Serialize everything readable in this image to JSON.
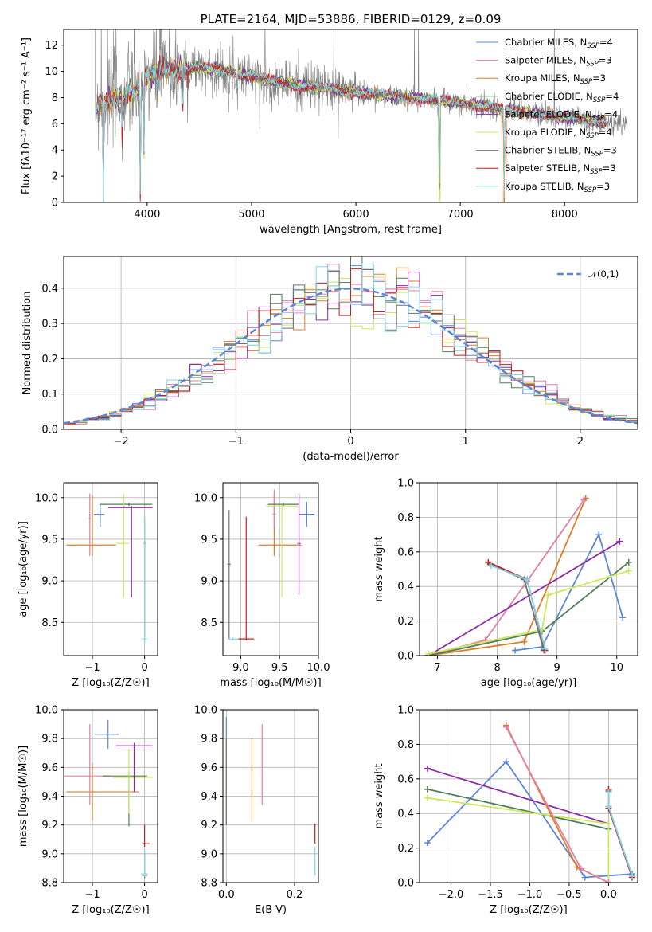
{
  "colors": {
    "Chabrier MILES": "#5b86d6",
    "Salpeter MILES": "#e57fa6",
    "Kroupa MILES": "#e07b28",
    "Chabrier ELODIE": "#4f7f58",
    "Salpeter ELODIE": "#8e2aa8",
    "Kroupa ELODIE": "#cde85a",
    "Chabrier STELIB": "#707070",
    "Salpeter STELIB": "#c81e1e",
    "Kroupa STELIB": "#7fd8e8"
  },
  "chart_data": [
    {
      "type": "line",
      "id": "spectrum",
      "title": "PLATE=2164, MJD=53886, FIBERID=0129, z=0.09",
      "xlabel": "wavelength [Angstrom, rest frame]",
      "ylabel": "Flux [fλ10⁻¹⁷ erg cm⁻² s⁻¹ A⁻¹]",
      "xlim": [
        3200,
        8700
      ],
      "ylim": [
        0,
        13.2
      ],
      "xticks": [
        4000,
        5000,
        6000,
        7000,
        8000
      ],
      "yticks": [
        0,
        2,
        4,
        6,
        8,
        10,
        12
      ],
      "grid": false,
      "legend_position": "top-right",
      "legend": [
        {
          "label": "Chabrier MILES, N",
          "sub": "SSP",
          "tail": "=4",
          "series": "Chabrier MILES"
        },
        {
          "label": "Salpeter MILES, N",
          "sub": "SSP",
          "tail": "=3",
          "series": "Salpeter MILES"
        },
        {
          "label": "Kroupa MILES, N",
          "sub": "SSP",
          "tail": "=3",
          "series": "Kroupa MILES"
        },
        {
          "label": "Chabrier ELODIE, N",
          "sub": "SSP",
          "tail": "=4",
          "series": "Chabrier ELODIE"
        },
        {
          "label": "Salpeter ELODIE, N",
          "sub": "SSP",
          "tail": "=4",
          "series": "Salpeter ELODIE"
        },
        {
          "label": "Kroupa ELODIE, N",
          "sub": "SSP",
          "tail": "=4",
          "series": "Kroupa ELODIE"
        },
        {
          "label": "Chabrier STELIB, N",
          "sub": "SSP",
          "tail": "=3",
          "series": "Chabrier STELIB"
        },
        {
          "label": "Salpeter STELIB, N",
          "sub": "SSP",
          "tail": "=3",
          "series": "Salpeter STELIB"
        },
        {
          "label": "Kroupa STELIB, N",
          "sub": "SSP",
          "tail": "=3",
          "series": "Kroupa STELIB"
        }
      ],
      "data_series": {
        "name": "data",
        "color": "#808080",
        "x_range": [
          3500,
          8600
        ]
      },
      "continuum": [
        [
          3500,
          7.6
        ],
        [
          3700,
          7.9
        ],
        [
          3850,
          8.4
        ],
        [
          4000,
          9.5
        ],
        [
          4150,
          10.2
        ],
        [
          4300,
          10.0
        ],
        [
          4500,
          10.3
        ],
        [
          4800,
          10.0
        ],
        [
          5000,
          9.6
        ],
        [
          5300,
          9.1
        ],
        [
          5600,
          8.8
        ],
        [
          6000,
          8.4
        ],
        [
          6500,
          8.0
        ],
        [
          7000,
          7.6
        ],
        [
          7500,
          7.0
        ],
        [
          8000,
          6.5
        ],
        [
          8500,
          6.0
        ]
      ],
      "absorption_features": [
        {
          "x": 3580,
          "flux": 0.1
        },
        {
          "x": 3760,
          "flux": 5.0
        },
        {
          "x": 3934,
          "flux": 0.1
        },
        {
          "x": 3969,
          "flux": 3.0
        },
        {
          "x": 4102,
          "flux": 6.5
        },
        {
          "x": 4340,
          "flux": 5.5
        },
        {
          "x": 4861,
          "flux": 7.0
        },
        {
          "x": 5175,
          "flux": 7.8
        },
        {
          "x": 6800,
          "flux": 0.1
        },
        {
          "x": 7420,
          "flux": 0.1
        }
      ],
      "data_emission_spikes": [
        3560,
        3620,
        3700,
        4120,
        5130,
        5790,
        6560,
        6600,
        7900
      ]
    },
    {
      "type": "area",
      "id": "residuals",
      "xlabel": "(data-model)/error",
      "ylabel": "Normed distribution",
      "xlim": [
        -2.5,
        2.5
      ],
      "ylim": [
        0,
        0.49
      ],
      "xticks": [
        -2,
        -1,
        0,
        1,
        2
      ],
      "yticks": [
        0.0,
        0.1,
        0.2,
        0.3,
        0.4
      ],
      "grid": true,
      "legend_position": "top-right",
      "reference": {
        "label": "𝒩(0,1)",
        "mean": 0,
        "sigma": 1,
        "color": "#5b86d6",
        "dashed": true
      },
      "bin_width": 0.1
    },
    {
      "type": "scatter",
      "id": "age-vs-Z",
      "xlabel": "Z [log₁₀(Z/Z☉)]",
      "ylabel": "age  [log₁₀(age/yr)]",
      "xlim": [
        -1.55,
        0.25
      ],
      "ylim": [
        8.1,
        10.18
      ],
      "xticks": [
        -1,
        0
      ],
      "yticks": [
        8.5,
        9.0,
        9.5,
        10.0
      ],
      "grid": true,
      "errorbars": [
        {
          "series": "Kroupa MILES",
          "x": -1.0,
          "xerr": [
            0.5,
            0.45
          ],
          "y": 9.43,
          "yerr": [
            0.13,
            0.6
          ]
        },
        {
          "series": "Salpeter MILES",
          "x": -1.05,
          "xerr": [
            0.02,
            0.02
          ],
          "y": 9.75,
          "yerr": [
            0.45,
            0.3
          ]
        },
        {
          "series": "Chabrier MILES",
          "x": -0.85,
          "xerr": [
            0.12,
            0.08
          ],
          "y": 9.8,
          "yerr": [
            0.15,
            0.12
          ]
        },
        {
          "series": "Chabrier ELODIE",
          "x": -0.3,
          "xerr": [
            0.55,
            0.45
          ],
          "y": 9.92,
          "yerr": [
            0.02,
            0.02
          ]
        },
        {
          "series": "Kroupa ELODIE",
          "x": -0.4,
          "xerr": [
            0.15,
            0.1
          ],
          "y": 9.45,
          "yerr": [
            0.65,
            0.6
          ]
        },
        {
          "series": "Salpeter ELODIE",
          "x": -0.25,
          "xerr": [
            0.45,
            0.4
          ],
          "y": 9.88,
          "yerr": [
            1.08,
            0.02
          ]
        },
        {
          "series": "Chabrier STELIB",
          "x": 0.0,
          "xerr": [
            0.02,
            0.02
          ],
          "y": 9.45,
          "yerr": [
            1.15,
            0.3
          ]
        },
        {
          "series": "Kroupa STELIB",
          "x": 0.0,
          "xerr": [
            0.05,
            0.05
          ],
          "y": 8.3,
          "yerr": [
            0.05,
            1.48
          ]
        }
      ]
    },
    {
      "type": "scatter",
      "id": "age-vs-mass",
      "xlabel": "mass [log₁₀(M/M☉)]",
      "ylabel": "",
      "xlim": [
        8.77,
        10.0
      ],
      "ylim": [
        8.1,
        10.18
      ],
      "xticks": [
        9.0,
        9.5,
        10.0
      ],
      "yticks": [
        8.5,
        9.0,
        9.5,
        10.0
      ],
      "grid": true,
      "errorbars": [
        {
          "series": "Kroupa MILES",
          "x": 9.43,
          "xerr": [
            0.2,
            0.35
          ],
          "y": 9.43,
          "yerr": [
            0.13,
            0.6
          ]
        },
        {
          "series": "Salpeter MILES",
          "x": 9.43,
          "xerr": [
            0.02,
            0.02
          ],
          "y": 9.8,
          "yerr": [
            0.15,
            0.3
          ]
        },
        {
          "series": "Chabrier MILES",
          "x": 9.85,
          "xerr": [
            0.1,
            0.1
          ],
          "y": 9.8,
          "yerr": [
            0.15,
            0.15
          ]
        },
        {
          "series": "Kroupa ELODIE",
          "x": 9.53,
          "xerr": [
            0.2,
            0.2
          ],
          "y": 9.9,
          "yerr": [
            1.1,
            0.02
          ]
        },
        {
          "series": "Chabrier ELODIE",
          "x": 9.55,
          "xerr": [
            0.2,
            0.2
          ],
          "y": 9.92,
          "yerr": [
            0.02,
            0.02
          ]
        },
        {
          "series": "Salpeter ELODIE",
          "x": 9.75,
          "xerr": [
            0.02,
            0.02
          ],
          "y": 9.45,
          "yerr": [
            0.62,
            0.6
          ]
        },
        {
          "series": "Chabrier STELIB",
          "x": 8.85,
          "xerr": [
            0.02,
            0.02
          ],
          "y": 9.2,
          "yerr": [
            0.9,
            0.65
          ]
        },
        {
          "series": "Salpeter STELIB",
          "x": 9.07,
          "xerr": [
            0.1,
            0.1
          ],
          "y": 8.3,
          "yerr": [
            0.02,
            1.47
          ]
        },
        {
          "series": "Kroupa STELIB",
          "x": 8.9,
          "xerr": [
            0.07,
            0.07
          ],
          "y": 8.3,
          "yerr": [
            0.02,
            0.02
          ]
        }
      ]
    },
    {
      "type": "line",
      "id": "mass-weight-vs-age",
      "xlabel": "age  [log₁₀(age/yr)]",
      "ylabel": "mass weight",
      "xlim": [
        6.7,
        10.35
      ],
      "ylim": [
        0,
        1.0
      ],
      "xticks": [
        7,
        8,
        9,
        10
      ],
      "yticks": [
        0.0,
        0.2,
        0.4,
        0.6,
        0.8,
        1.0
      ],
      "grid": true,
      "series": [
        {
          "name": "Kroupa MILES",
          "x": [
            6.85,
            8.45,
            9.48
          ],
          "y": [
            0.0,
            0.08,
            0.91
          ]
        },
        {
          "name": "Salpeter MILES",
          "x": [
            6.85,
            7.8,
            8.5,
            9.45
          ],
          "y": [
            0.0,
            0.09,
            0.43,
            0.9
          ]
        },
        {
          "name": "Chabrier MILES",
          "x": [
            8.3,
            8.75,
            9.7,
            10.1
          ],
          "y": [
            0.03,
            0.05,
            0.7,
            0.22
          ]
        },
        {
          "name": "Salpeter ELODIE",
          "x": [
            6.85,
            10.05
          ],
          "y": [
            0.0,
            0.66
          ]
        },
        {
          "name": "Chabrier ELODIE",
          "x": [
            6.85,
            8.75,
            10.2
          ],
          "y": [
            0.0,
            0.14,
            0.54
          ]
        },
        {
          "name": "Kroupa ELODIE",
          "x": [
            6.85,
            8.75,
            8.85,
            10.2
          ],
          "y": [
            0.01,
            0.15,
            0.35,
            0.49
          ]
        },
        {
          "name": "Chabrier STELIB",
          "x": [
            7.88,
            8.45,
            8.78
          ],
          "y": [
            0.53,
            0.44,
            0.03
          ]
        },
        {
          "name": "Salpeter STELIB",
          "x": [
            7.85,
            8.5,
            8.8
          ],
          "y": [
            0.54,
            0.44,
            0.03
          ]
        },
        {
          "name": "Kroupa STELIB",
          "x": [
            7.9,
            8.5,
            8.8
          ],
          "y": [
            0.52,
            0.44,
            0.04
          ]
        }
      ]
    },
    {
      "type": "scatter",
      "id": "mass-vs-Z",
      "xlabel": "Z [log₁₀(Z/Z☉)]",
      "ylabel": "mass [log₁₀(M/M☉)]",
      "xlim": [
        -1.55,
        0.25
      ],
      "ylim": [
        8.8,
        10.0
      ],
      "xticks": [
        -1,
        0
      ],
      "yticks": [
        8.8,
        9.0,
        9.2,
        9.4,
        9.6,
        9.8,
        10.0
      ],
      "grid": true,
      "errorbars": [
        {
          "series": "Kroupa MILES",
          "x": -1.0,
          "xerr": [
            0.5,
            0.9
          ],
          "y": 9.43,
          "yerr": [
            0.2,
            0.2
          ]
        },
        {
          "series": "Salpeter MILES",
          "x": -1.05,
          "xerr": [
            0.5,
            0.4
          ],
          "y": 9.54,
          "yerr": [
            0.2,
            0.36
          ]
        },
        {
          "series": "Chabrier MILES",
          "x": -0.7,
          "xerr": [
            0.25,
            0.2
          ],
          "y": 9.83,
          "yerr": [
            0.1,
            0.1
          ]
        },
        {
          "series": "Chabrier ELODIE",
          "x": -0.3,
          "xerr": [
            0.5,
            0.35
          ],
          "y": 9.54,
          "yerr": [
            0.35,
            0.02
          ]
        },
        {
          "series": "Kroupa ELODIE",
          "x": -0.3,
          "xerr": [
            0.3,
            0.45
          ],
          "y": 9.53,
          "yerr": [
            0.25,
            0.2
          ]
        },
        {
          "series": "Salpeter ELODIE",
          "x": -0.2,
          "xerr": [
            0.35,
            0.35
          ],
          "y": 9.75,
          "yerr": [
            0.32,
            0.02
          ]
        },
        {
          "series": "Salpeter STELIB",
          "x": 0.0,
          "xerr": [
            0.05,
            0.1
          ],
          "y": 9.07,
          "yerr": [
            0.02,
            0.13
          ]
        },
        {
          "series": "Chabrier STELIB",
          "x": 0.0,
          "xerr": [
            0.05,
            0.05
          ],
          "y": 8.85,
          "yerr": [
            0.02,
            0.17
          ]
        },
        {
          "series": "Kroupa STELIB",
          "x": 0.0,
          "xerr": [
            0.07,
            0.07
          ],
          "y": 8.86,
          "yerr": [
            0.02,
            0.17
          ]
        }
      ]
    },
    {
      "type": "scatter",
      "id": "mass-vs-EBV",
      "xlabel": "E(B-V)",
      "ylabel": "",
      "xlim": [
        -0.01,
        0.27
      ],
      "ylim": [
        8.8,
        10.0
      ],
      "xticks": [
        0.0,
        0.2
      ],
      "yticks": [
        8.8,
        9.0,
        9.2,
        9.4,
        9.6,
        9.8,
        10.0
      ],
      "grid": true,
      "errorbars": [
        {
          "series": "Chabrier MILES",
          "x": 0.0,
          "xerr": [
            0.0,
            0.0
          ],
          "y": 9.8,
          "yerr": [
            0.1,
            0.15
          ]
        },
        {
          "series": "Kroupa ELODIE",
          "x": 0.0,
          "xerr": [
            0.0,
            0.0
          ],
          "y": 9.53,
          "yerr": [
            0.25,
            0.27
          ]
        },
        {
          "series": "Chabrier STELIB",
          "x": 0.0,
          "xerr": [
            0.0,
            0.0
          ],
          "y": 9.5,
          "yerr": [
            0.3,
            0.3
          ]
        },
        {
          "series": "Kroupa MILES",
          "x": 0.075,
          "xerr": [
            0.0,
            0.0
          ],
          "y": 9.52,
          "yerr": [
            0.3,
            0.28
          ]
        },
        {
          "series": "Salpeter MILES",
          "x": 0.105,
          "xerr": [
            0.0,
            0.0
          ],
          "y": 9.6,
          "yerr": [
            0.26,
            0.3
          ]
        },
        {
          "series": "Salpeter STELIB",
          "x": 0.26,
          "xerr": [
            0.0,
            0.0
          ],
          "y": 9.14,
          "yerr": [
            0.07,
            0.07
          ]
        },
        {
          "series": "Kroupa STELIB",
          "x": 0.26,
          "xerr": [
            0.0,
            0.0
          ],
          "y": 8.95,
          "yerr": [
            0.1,
            0.1
          ]
        }
      ]
    },
    {
      "type": "line",
      "id": "mass-weight-vs-Z",
      "xlabel": "Z [log₁₀(Z/Z☉)]",
      "ylabel": "mass weight",
      "xlim": [
        -2.4,
        0.37
      ],
      "ylim": [
        0,
        1.0
      ],
      "xticks": [
        -2.0,
        -1.5,
        -1.0,
        -0.5,
        0.0
      ],
      "yticks": [
        0.0,
        0.2,
        0.4,
        0.6,
        0.8,
        1.0
      ],
      "grid": true,
      "series": [
        {
          "name": "Chabrier MILES",
          "x": [
            -2.3,
            -1.3,
            -0.3,
            0.3
          ],
          "y": [
            0.23,
            0.7,
            0.03,
            0.05
          ]
        },
        {
          "name": "Salpeter ELODIE",
          "x": [
            -2.3,
            0.0
          ],
          "y": [
            0.66,
            0.34
          ]
        },
        {
          "name": "Chabrier ELODIE",
          "x": [
            -2.3,
            0.0
          ],
          "y": [
            0.54,
            0.31
          ]
        },
        {
          "name": "Kroupa ELODIE",
          "x": [
            -2.3,
            0.0,
            0.0
          ],
          "y": [
            0.49,
            0.34,
            0.0
          ]
        },
        {
          "name": "Kroupa MILES",
          "x": [
            -1.3,
            -0.4,
            0.0
          ],
          "y": [
            0.91,
            0.09,
            0.0
          ]
        },
        {
          "name": "Salpeter MILES",
          "x": [
            -1.3,
            -0.35,
            0.0
          ],
          "y": [
            0.9,
            0.08,
            0.0
          ]
        },
        {
          "name": "Chabrier STELIB",
          "x": [
            0.0,
            0.0,
            0.3
          ],
          "y": [
            0.53,
            0.44,
            0.04
          ]
        },
        {
          "name": "Salpeter STELIB",
          "x": [
            0.0,
            0.0,
            0.3
          ],
          "y": [
            0.54,
            0.43,
            0.03
          ]
        },
        {
          "name": "Kroupa STELIB",
          "x": [
            0.0,
            0.0,
            0.3
          ],
          "y": [
            0.52,
            0.44,
            0.04
          ]
        }
      ]
    }
  ]
}
